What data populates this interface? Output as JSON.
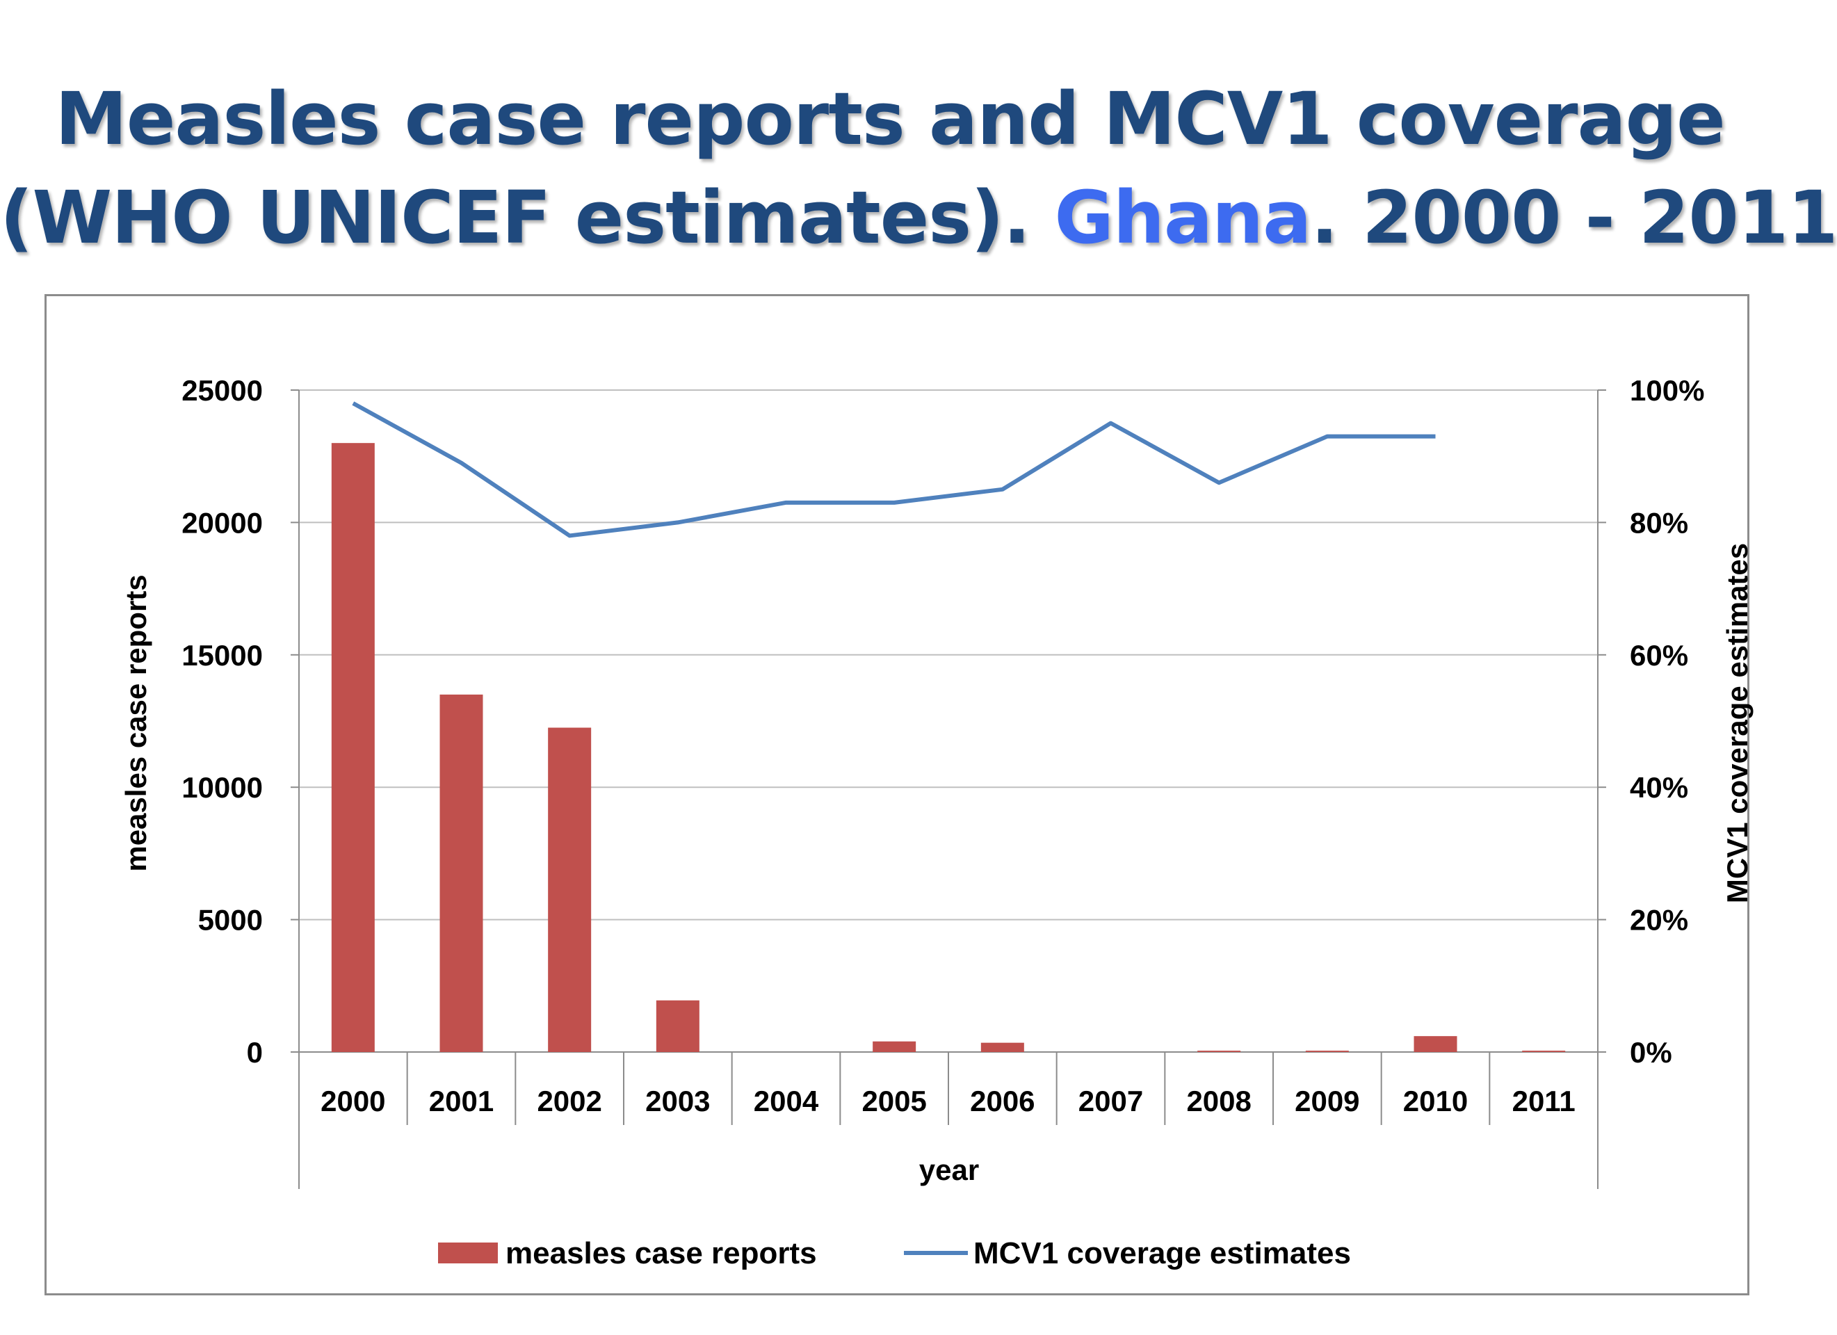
{
  "title": {
    "line1": "Measles case reports and MCV1 coverage",
    "line2_prefix": "(WHO UNICEF estimates). ",
    "line2_country": "Ghana",
    "line2_suffix": ". 2000 - 2011"
  },
  "colors": {
    "title": "#1F497D",
    "country": "#3D6BF0",
    "bars": "#C0504D",
    "line": "#4F81BD",
    "grid": "#bfbfbf",
    "frame": "#8c8c8c"
  },
  "chart_data": {
    "type": "bar",
    "categories": [
      "2000",
      "2001",
      "2002",
      "2003",
      "2004",
      "2005",
      "2006",
      "2007",
      "2008",
      "2009",
      "2010",
      "2011"
    ],
    "series": [
      {
        "name": "measles case reports",
        "type": "bar",
        "axis": "left",
        "values": [
          23000,
          13500,
          12250,
          1950,
          0,
          400,
          350,
          0,
          50,
          50,
          600,
          50
        ]
      },
      {
        "name": "MCV1 coverage estimates",
        "type": "line",
        "axis": "right",
        "values": [
          98,
          89,
          78,
          80,
          83,
          83,
          85,
          95,
          86,
          93,
          93,
          null
        ]
      }
    ],
    "xlabel": "year",
    "ylabel": "measles case reports",
    "y2label": "MCV1 coverage estimates",
    "ylim": [
      0,
      25000
    ],
    "y2lim": [
      0,
      100
    ],
    "yticks": [
      "0",
      "5000",
      "10000",
      "15000",
      "20000",
      "25000"
    ],
    "y2ticks": [
      "0%",
      "20%",
      "40%",
      "60%",
      "80%",
      "100%"
    ],
    "grid": true,
    "legend": "bottom"
  }
}
